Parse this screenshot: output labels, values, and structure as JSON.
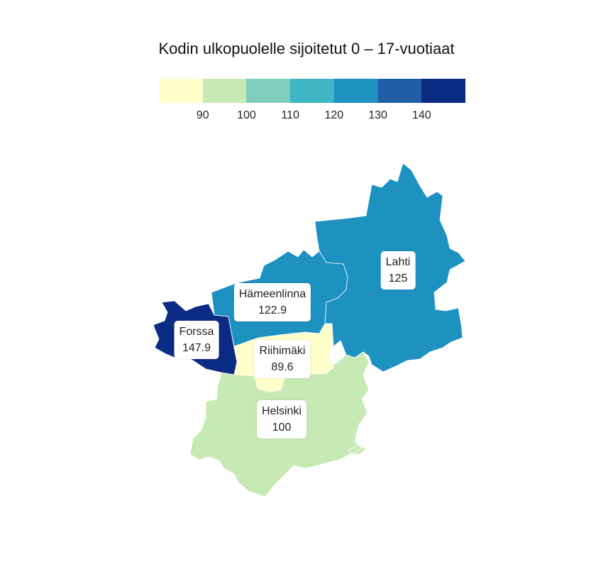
{
  "title": "Kodin ulkopuolelle sijoitetut 0 – 17-vuotiaat",
  "legend": {
    "colors": [
      "#ffffcc",
      "#c7e9b4",
      "#7fcdbb",
      "#41b6c4",
      "#1d91c0",
      "#225ea8",
      "#0c2c84"
    ],
    "ticks": [
      "90",
      "100",
      "110",
      "120",
      "130",
      "140"
    ]
  },
  "regions": {
    "lahti": {
      "name": "Lahti",
      "value": "125",
      "color": "#1d91c0"
    },
    "hameenlinna": {
      "name": "Hämeenlinna",
      "value": "122.9",
      "color": "#1d91c0"
    },
    "forssa": {
      "name": "Forssa",
      "value": "147.9",
      "color": "#0c2c84"
    },
    "riihimaki": {
      "name": "Riihimäki",
      "value": "89.6",
      "color": "#ffffcc"
    },
    "helsinki": {
      "name": "Helsinki",
      "value": "100",
      "color": "#c7e9b4"
    }
  }
}
